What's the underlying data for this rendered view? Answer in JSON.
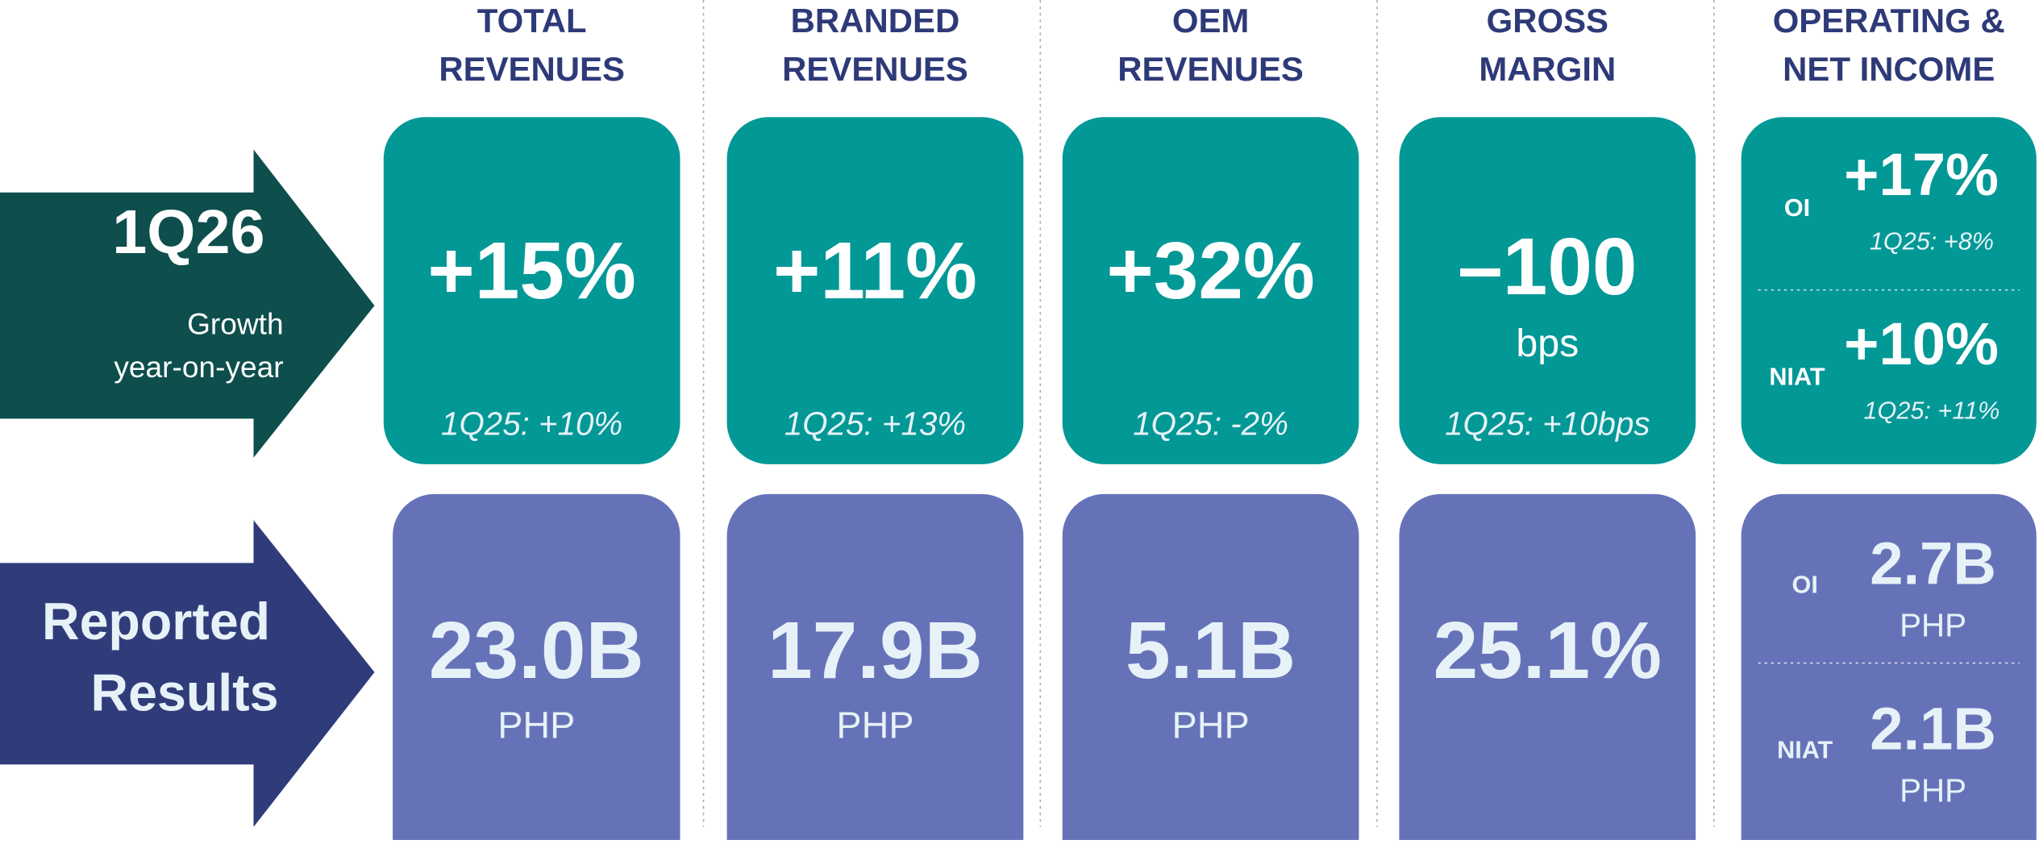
{
  "columns": [
    {
      "title": [
        "TOTAL",
        "REVENUES"
      ],
      "growth": {
        "value": "+15%",
        "prior": "1Q25: +10%"
      },
      "reported": {
        "value": "23.0B",
        "unit": "PHP"
      }
    },
    {
      "title": [
        "BRANDED",
        "REVENUES"
      ],
      "growth": {
        "value": "+11%",
        "prior": "1Q25: +13%"
      },
      "reported": {
        "value": "17.9B",
        "unit": "PHP"
      }
    },
    {
      "title": [
        "OEM",
        "REVENUES"
      ],
      "growth": {
        "value": "+32%",
        "prior": "1Q25: -2%"
      },
      "reported": {
        "value": "5.1B",
        "unit": "PHP"
      }
    },
    {
      "title": [
        "GROSS",
        "MARGIN"
      ],
      "growth": {
        "value": "–100",
        "unit": "bps",
        "prior": "1Q25: +10bps"
      },
      "reported": {
        "value": "25.1%"
      }
    },
    {
      "title": [
        "OPERATING &",
        "NET INCOME"
      ],
      "growth": {
        "items": [
          {
            "label": "OI",
            "value": "+17%",
            "prior": "1Q25: +8%"
          },
          {
            "label": "NIAT",
            "value": "+10%",
            "prior": "1Q25: +11%"
          }
        ]
      },
      "reported": {
        "items": [
          {
            "label": "OI",
            "value": "2.7B",
            "unit": "PHP"
          },
          {
            "label": "NIAT",
            "value": "2.1B",
            "unit": "PHP"
          }
        ]
      }
    }
  ],
  "rows": {
    "growth": {
      "period": "1Q26",
      "lines": [
        "Growth",
        "year-on-year"
      ]
    },
    "reported": {
      "lines": [
        "Reported",
        "Results"
      ]
    }
  }
}
